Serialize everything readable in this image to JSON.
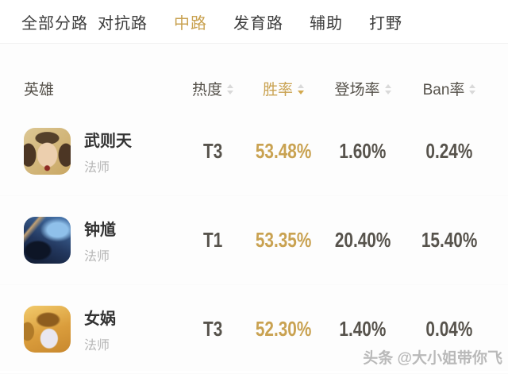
{
  "nav": {
    "tabs": [
      {
        "label": "全部分路",
        "active": false
      },
      {
        "label": "对抗路",
        "active": false
      },
      {
        "label": "中路",
        "active": true
      },
      {
        "label": "发育路",
        "active": false
      },
      {
        "label": "辅助",
        "active": false
      },
      {
        "label": "打野",
        "active": false
      }
    ]
  },
  "table": {
    "columns": {
      "hero": "英雄",
      "heat": "热度",
      "win_rate": "胜率",
      "pick_rate": "登场率",
      "ban_rate": "Ban率"
    },
    "sort": {
      "active_column": "win_rate",
      "direction": "desc"
    },
    "rows": [
      {
        "name": "武则天",
        "role": "法师",
        "avatar": "wuzetian-portrait",
        "tier": "T3",
        "win_rate": "53.48%",
        "pick_rate": "1.60%",
        "ban_rate": "0.24%"
      },
      {
        "name": "钟馗",
        "role": "法师",
        "avatar": "zhongkui-portrait",
        "tier": "T1",
        "win_rate": "53.35%",
        "pick_rate": "20.40%",
        "ban_rate": "15.40%"
      },
      {
        "name": "女娲",
        "role": "法师",
        "avatar": "nuwa-portrait",
        "tier": "T3",
        "win_rate": "52.30%",
        "pick_rate": "1.40%",
        "ban_rate": "0.04%"
      }
    ]
  },
  "watermark": {
    "text": "头条 @大小姐带你飞"
  },
  "colors": {
    "accent_gold": "#c9a251",
    "nav_text": "#3e3e3e",
    "value_dark": "#57534c",
    "role_muted": "#b5b5b5",
    "arrow_inactive": "#d9d9d9"
  }
}
